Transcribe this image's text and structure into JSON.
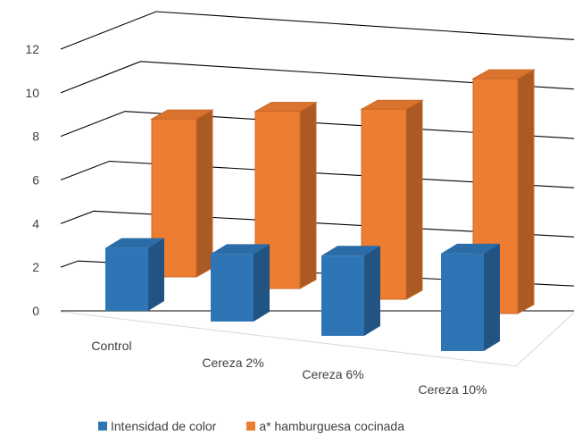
{
  "chart_data": {
    "type": "bar",
    "style": "3d-clustered-columns",
    "title": "",
    "xlabel": "",
    "ylabel": "",
    "categories": [
      "Control",
      "Cereza 2%",
      "Cereza 6%",
      "Cereza 10%"
    ],
    "series": [
      {
        "name": "Intensidad de color",
        "color": "#2e75b6",
        "values": [
          4.0,
          4.3,
          5.1,
          6.2
        ]
      },
      {
        "name": "a* hamburguesa cocinada",
        "color": "#ed7d31",
        "values": [
          7.4,
          8.3,
          8.9,
          11.0
        ]
      }
    ],
    "ylim": [
      0,
      12
    ],
    "yticks": [
      0,
      2,
      4,
      6,
      8,
      10,
      12
    ],
    "grid": true,
    "legend_position": "bottom"
  }
}
